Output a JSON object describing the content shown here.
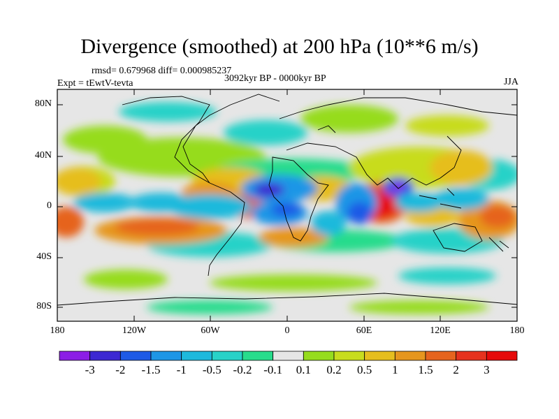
{
  "title": "Divergence (smoothed) at 200 hPa (10**6 m/s)",
  "stats": "rmsd= 0.679968 diff= 0.000985237",
  "experiment": "Expt = tEwtV-tevta",
  "period": "3092kyr BP - 0000kyr BP",
  "season": "JJA",
  "lat_labels": [
    "80N",
    "40N",
    "0",
    "40S",
    "80S"
  ],
  "lon_labels": [
    "180",
    "120W",
    "60W",
    "0",
    "60E",
    "120E",
    "180"
  ],
  "colorbar": {
    "labels": [
      "-3",
      "-2",
      "-1.5",
      "-1",
      "-0.5",
      "-0.2",
      "-0.1",
      "0.1",
      "0.2",
      "0.5",
      "1",
      "1.5",
      "2",
      "3"
    ],
    "colors": [
      "#8c1ee6",
      "#3c28d2",
      "#1e5ae6",
      "#1e96e6",
      "#1eb9dc",
      "#28d2c8",
      "#28dc8c",
      "#e6e6e6",
      "#96dc1e",
      "#c8dc1e",
      "#e6be1e",
      "#e6961e",
      "#e6641e",
      "#e6321e",
      "#e60a0a"
    ]
  }
}
